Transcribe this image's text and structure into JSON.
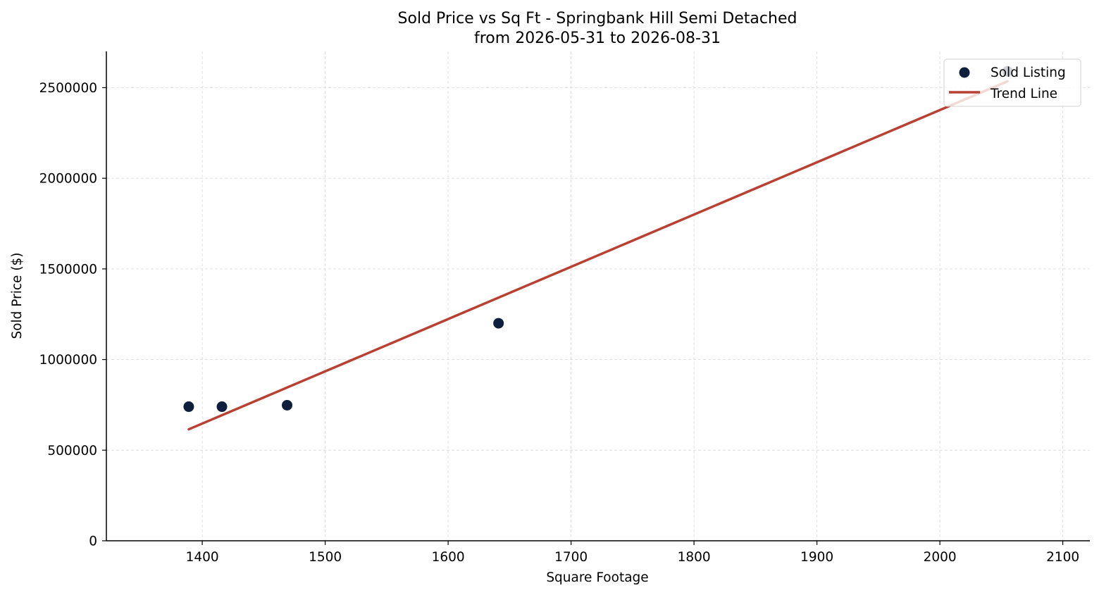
{
  "chart_data": {
    "type": "scatter",
    "title": "Sold Price vs Sq Ft - Springbank Hill Semi Detached",
    "subtitle": "from 2026-05-31 to 2026-08-31",
    "xlabel": "Square Footage",
    "ylabel": "Sold Price ($)",
    "xlim": [
      1322,
      2122
    ],
    "ylim": [
      0,
      2700000
    ],
    "x_ticks": [
      1400,
      1500,
      1600,
      1700,
      1800,
      1900,
      2000,
      2100
    ],
    "y_ticks": [
      0,
      500000,
      1000000,
      1500000,
      2000000,
      2500000
    ],
    "x_tick_labels": [
      "1400",
      "1500",
      "1600",
      "1700",
      "1800",
      "1900",
      "2000",
      "2100"
    ],
    "y_tick_labels": [
      "0",
      "500000",
      "1000000",
      "1500000",
      "2000000",
      "2500000"
    ],
    "grid": true,
    "legend_position": "top-right",
    "series": [
      {
        "name": "Sold Listing",
        "kind": "scatter",
        "color": "#0d1f3c",
        "points": [
          {
            "x": 1389,
            "y": 740000
          },
          {
            "x": 1416,
            "y": 740000
          },
          {
            "x": 1469,
            "y": 748000
          },
          {
            "x": 1641,
            "y": 1200000
          },
          {
            "x": 2055,
            "y": 2590000
          }
        ]
      },
      {
        "name": "Trend Line",
        "kind": "line",
        "color": "#b94133",
        "points": [
          {
            "x": 1389,
            "y": 615000
          },
          {
            "x": 2055,
            "y": 2535000
          }
        ]
      }
    ]
  }
}
